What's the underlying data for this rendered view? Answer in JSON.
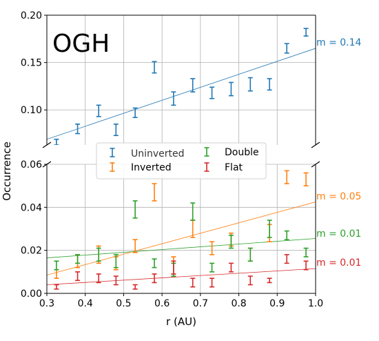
{
  "chart_data": {
    "type": "scatter",
    "shared_xlabel": "r (AU)",
    "shared_ylabel": "Occurrence",
    "x_ticks": [
      "0.3",
      "0.4",
      "0.5",
      "0.6",
      "0.7",
      "0.8",
      "0.9",
      "1.0"
    ],
    "xlim": [
      0.3,
      1.0
    ],
    "grid": true,
    "colors": {
      "blue": "#1f77b4",
      "orange": "#ff7f0e",
      "green": "#2ca02c",
      "red": "#d62728",
      "grid": "#b0b0b0"
    },
    "panels": [
      {
        "annotation": "OGH",
        "ylim": [
          0.063,
          0.2
        ],
        "y_ticks": [
          {
            "value": 0.1,
            "label": "0.10"
          },
          {
            "value": 0.15,
            "label": "0.15"
          },
          {
            "value": 0.2,
            "label": "0.20"
          }
        ],
        "series": [
          {
            "name": "Uninverted",
            "color": "#1f77b4",
            "x": [
              0.325,
              0.38,
              0.435,
              0.48,
              0.53,
              0.58,
              0.63,
              0.68,
              0.73,
              0.78,
              0.83,
              0.88,
              0.925,
              0.975
            ],
            "y": [
              0.066,
              0.08,
              0.099,
              0.079,
              0.097,
              0.145,
              0.112,
              0.126,
              0.118,
              0.122,
              0.127,
              0.127,
              0.165,
              0.182
            ],
            "yerr": [
              0.003,
              0.005,
              0.006,
              0.006,
              0.005,
              0.006,
              0.007,
              0.007,
              0.006,
              0.007,
              0.007,
              0.006,
              0.005,
              0.004
            ],
            "fit": {
              "x": [
                0.3,
                1.0
              ],
              "y": [
                0.069,
                0.165
              ],
              "label": "m = 0.14"
            }
          }
        ]
      },
      {
        "ylim": [
          0,
          0.06
        ],
        "y_ticks": [
          {
            "value": 0,
            "label": "0.00"
          },
          {
            "value": 0.02,
            "label": "0.02"
          },
          {
            "value": 0.04,
            "label": "0.04"
          },
          {
            "value": 0.06,
            "label": "0.06"
          }
        ],
        "series": [
          {
            "name": "Inverted",
            "color": "#ff7f0e",
            "x": [
              0.325,
              0.38,
              0.435,
              0.48,
              0.53,
              0.58,
              0.63,
              0.68,
              0.73,
              0.78,
              0.83,
              0.88,
              0.925,
              0.975
            ],
            "y": [
              0.009,
              0.015,
              0.018,
              0.014,
              0.022,
              0.047,
              0.013,
              0.03,
              0.021,
              0.025,
              0.018,
              0.028,
              0.054,
              0.053
            ],
            "yerr": [
              0.002,
              0.003,
              0.004,
              0.003,
              0.003,
              0.004,
              0.004,
              0.004,
              0.003,
              0.003,
              0.003,
              0.004,
              0.003,
              0.003
            ],
            "fit": {
              "x": [
                0.3,
                1.0
              ],
              "y": [
                0.0085,
                0.0425
              ],
              "label": "m = 0.05"
            }
          },
          {
            "name": "Double",
            "color": "#2ca02c",
            "x": [
              0.325,
              0.38,
              0.435,
              0.48,
              0.53,
              0.58,
              0.63,
              0.68,
              0.73,
              0.78,
              0.83,
              0.88,
              0.925,
              0.975
            ],
            "y": [
              0.013,
              0.016,
              0.018,
              0.015,
              0.039,
              0.014,
              0.011,
              0.038,
              0.012,
              0.024,
              0.018,
              0.03,
              0.027,
              0.019
            ],
            "yerr": [
              0.002,
              0.002,
              0.003,
              0.003,
              0.004,
              0.002,
              0.003,
              0.004,
              0.002,
              0.003,
              0.003,
              0.004,
              0.002,
              0.002
            ],
            "fit": {
              "x": [
                0.3,
                1.0
              ],
              "y": [
                0.0165,
                0.0255
              ],
              "label": "m = 0.01"
            }
          },
          {
            "name": "Flat",
            "color": "#d62728",
            "x": [
              0.325,
              0.38,
              0.435,
              0.48,
              0.53,
              0.58,
              0.63,
              0.68,
              0.73,
              0.78,
              0.83,
              0.88,
              0.925,
              0.975
            ],
            "y": [
              0.003,
              0.008,
              0.007,
              0.006,
              0.003,
              0.007,
              0.012,
              0.005,
              0.005,
              0.012,
              0.006,
              0.006,
              0.016,
              0.013
            ],
            "yerr": [
              0.001,
              0.002,
              0.002,
              0.002,
              0.001,
              0.002,
              0.003,
              0.002,
              0.002,
              0.002,
              0.002,
              0.001,
              0.002,
              0.002
            ],
            "fit": {
              "x": [
                0.3,
                1.0
              ],
              "y": [
                0.004,
                0.0115
              ],
              "label": "m = 0.01"
            }
          }
        ]
      }
    ],
    "legend": {
      "placement": "center, between panels",
      "entries": [
        "Uninverted",
        "Inverted",
        "Double",
        "Flat"
      ]
    }
  }
}
